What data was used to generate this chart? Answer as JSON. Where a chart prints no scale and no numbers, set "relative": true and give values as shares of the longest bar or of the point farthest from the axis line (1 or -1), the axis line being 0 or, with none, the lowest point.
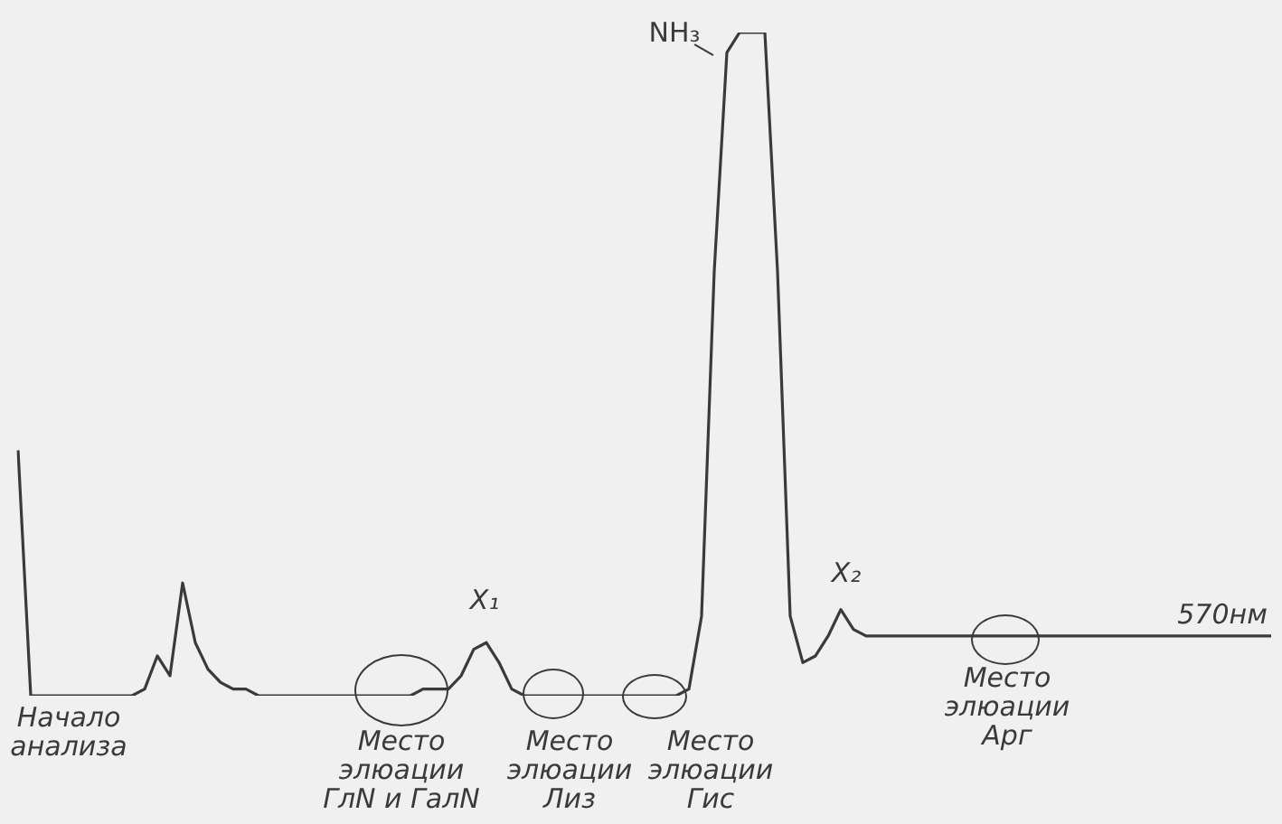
{
  "chart_data": {
    "type": "line",
    "relative": true,
    "color": "#3a3a3a",
    "marker": "none",
    "categories": [
      null,
      null,
      null,
      null,
      null,
      null,
      null,
      null,
      null,
      null,
      null,
      null,
      null,
      null,
      null,
      null,
      null,
      null,
      null,
      null,
      null,
      null,
      null,
      null,
      null,
      null,
      null,
      null,
      null,
      null,
      null,
      null,
      null,
      null,
      null,
      null,
      null,
      null,
      null,
      null,
      null,
      null,
      null,
      null,
      null,
      null,
      null,
      null,
      null,
      null,
      null,
      null,
      null,
      null,
      null,
      null,
      null,
      null,
      null,
      null,
      null,
      null,
      null,
      null,
      null,
      null,
      null,
      null,
      null,
      null,
      null,
      null,
      null,
      null,
      null,
      null,
      null,
      null,
      null,
      null,
      null,
      null,
      null,
      null,
      null,
      null,
      null,
      null,
      null,
      null,
      null,
      null,
      null,
      null,
      null,
      null,
      null,
      null,
      null,
      null
    ],
    "values": [
      0.37,
      0,
      0,
      0,
      0,
      0,
      0,
      0,
      0,
      0,
      0.01,
      0.06,
      0.03,
      0.17,
      0.08,
      0.04,
      0.02,
      0.01,
      0.01,
      0,
      0,
      0,
      0,
      0,
      0,
      0,
      0,
      0,
      0,
      0,
      0,
      0,
      0.01,
      0.01,
      0.01,
      0.03,
      0.07,
      0.08,
      0.05,
      0.01,
      0,
      0,
      0,
      0,
      0,
      0,
      0,
      0,
      0,
      0,
      0,
      0,
      0,
      0.01,
      0.12,
      0.64,
      0.97,
      1,
      1,
      1,
      0.64,
      0.12,
      0.05,
      0.06,
      0.09,
      0.13,
      0.1,
      0.09,
      0.09,
      0.09,
      0.09,
      0.09,
      0.09,
      0.09,
      0.09,
      0.09,
      0.09,
      0.09,
      0.09,
      0.09,
      0.09,
      0.09,
      0.09,
      0.09,
      0.09,
      0.09,
      0.09,
      0.09,
      0.09,
      0.09,
      0.09,
      0.09,
      0.09,
      0.09,
      0.09,
      0.09,
      0.09,
      0.09,
      0.09,
      0.09
    ],
    "annotations": [
      "Начало\nанализа",
      "Место\nэлюации\nГлN и ГалN",
      "Место\nэлюации\nЛиз",
      "Место\nэлюации\nГис",
      "Место\nэлюации\nАрг",
      "X₁",
      "X₂",
      "NH₃",
      "570нм"
    ]
  }
}
